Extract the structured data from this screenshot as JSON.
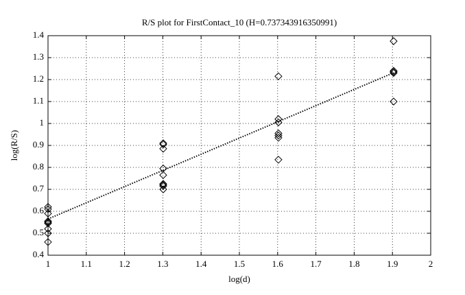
{
  "chart_data": {
    "type": "scatter",
    "title": "R/S plot for FirstContact_10 (H=0.737343916350991)",
    "x_label": "log(d)",
    "y_label": "log(R/S)",
    "xlim": [
      1,
      2
    ],
    "ylim": [
      0.4,
      1.4
    ],
    "xticks": [
      1,
      1.1,
      1.2,
      1.3,
      1.4,
      1.5,
      1.6,
      1.7,
      1.8,
      1.9,
      2
    ],
    "yticks": [
      0.4,
      0.5,
      0.6,
      0.7,
      0.8,
      0.9,
      1,
      1.1,
      1.2,
      1.3,
      1.4
    ],
    "grid": true,
    "series": [
      {
        "marker": "diamond",
        "color": "#000000",
        "x": [
          1,
          1,
          1,
          1,
          1,
          1,
          1,
          1,
          1,
          1.30103,
          1.30103,
          1.30103,
          1.30103,
          1.30103,
          1.30103,
          1.30103,
          1.30103,
          1.30103,
          1.60206,
          1.60206,
          1.60206,
          1.60206,
          1.60206,
          1.60206,
          1.60206,
          1.90309,
          1.90309,
          1.90309,
          1.90309,
          1.90309
        ],
        "values": [
          0.62,
          0.61,
          0.59,
          0.555,
          0.55,
          0.545,
          0.52,
          0.5,
          0.46,
          0.91,
          0.905,
          0.885,
          0.795,
          0.765,
          0.725,
          0.72,
          0.715,
          0.7,
          1.215,
          1.02,
          1.005,
          0.955,
          0.945,
          0.935,
          0.835,
          1.375,
          1.24,
          1.235,
          1.23,
          1.1
        ]
      },
      {
        "line_style": "dotted",
        "color": "#000000",
        "x": [
          1,
          1.90309
        ],
        "values": [
          0.565,
          1.231
        ]
      }
    ]
  }
}
